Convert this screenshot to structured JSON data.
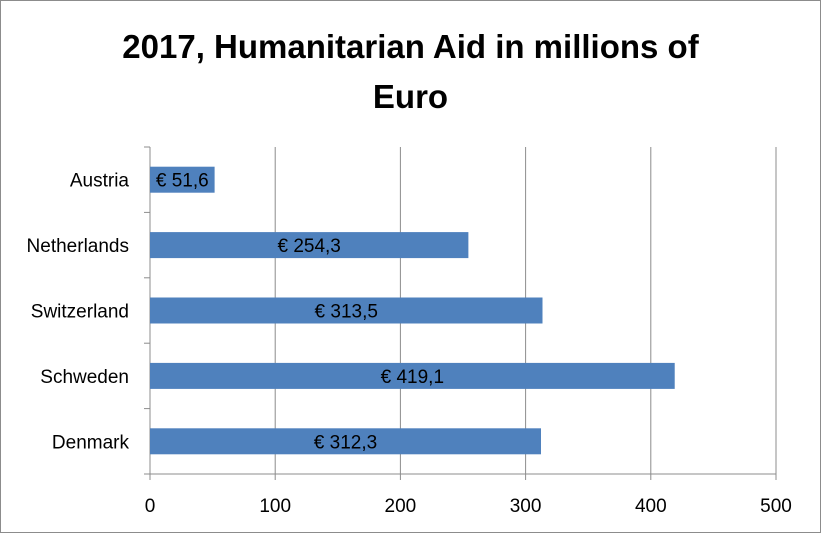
{
  "chart_data": {
    "type": "bar",
    "orientation": "horizontal",
    "title_lines": [
      "2017, Humanitarian Aid in millions of",
      "Euro"
    ],
    "categories": [
      "Austria",
      "Netherlands",
      "Switzerland",
      "Schweden",
      "Denmark"
    ],
    "values": [
      51.6,
      254.3,
      313.5,
      419.1,
      312.3
    ],
    "data_labels": [
      "€ 51,6",
      "€ 254,3",
      "€ 313,5",
      "€ 419,1",
      "€ 312,3"
    ],
    "xlim": [
      0,
      500
    ],
    "xticks": [
      0,
      100,
      200,
      300,
      400,
      500
    ],
    "grid": true,
    "legend": "none",
    "bar_color": "#4f81bd"
  }
}
